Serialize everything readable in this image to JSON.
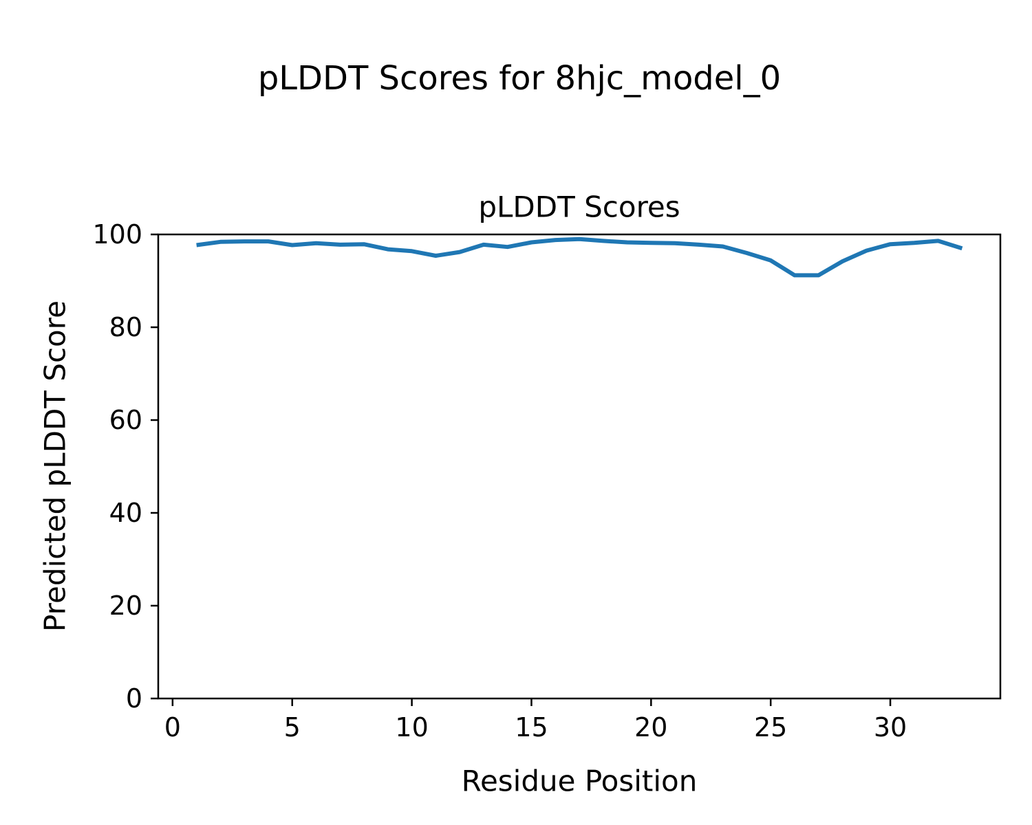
{
  "figure_title": "pLDDT Scores for 8hjc_model_0",
  "chart_data": {
    "type": "line",
    "title": "pLDDT Scores",
    "xlabel": "Residue Position",
    "ylabel": "Predicted pLDDT Score",
    "x": [
      1,
      2,
      3,
      4,
      5,
      6,
      7,
      8,
      9,
      10,
      11,
      12,
      13,
      14,
      15,
      16,
      17,
      18,
      19,
      20,
      21,
      22,
      23,
      24,
      25,
      26,
      27,
      28,
      29,
      30,
      31,
      32,
      33
    ],
    "y": [
      97.7,
      98.4,
      98.5,
      98.5,
      97.7,
      98.1,
      97.8,
      97.9,
      96.8,
      96.4,
      95.4,
      96.2,
      97.8,
      97.3,
      98.3,
      98.8,
      99.0,
      98.6,
      98.3,
      98.2,
      98.1,
      97.8,
      97.4,
      96.0,
      94.4,
      91.2,
      91.2,
      94.2,
      96.5,
      97.9,
      98.2,
      98.6,
      97.0
    ],
    "xlim": [
      -0.6,
      34.6
    ],
    "ylim": [
      0,
      100
    ],
    "x_ticks": [
      0,
      5,
      10,
      15,
      20,
      25,
      30
    ],
    "y_ticks": [
      0,
      20,
      40,
      60,
      80,
      100
    ],
    "grid": false,
    "legend": null,
    "line_color": "#1f77b4",
    "axis_color": "#000000",
    "background_color": "#ffffff"
  }
}
